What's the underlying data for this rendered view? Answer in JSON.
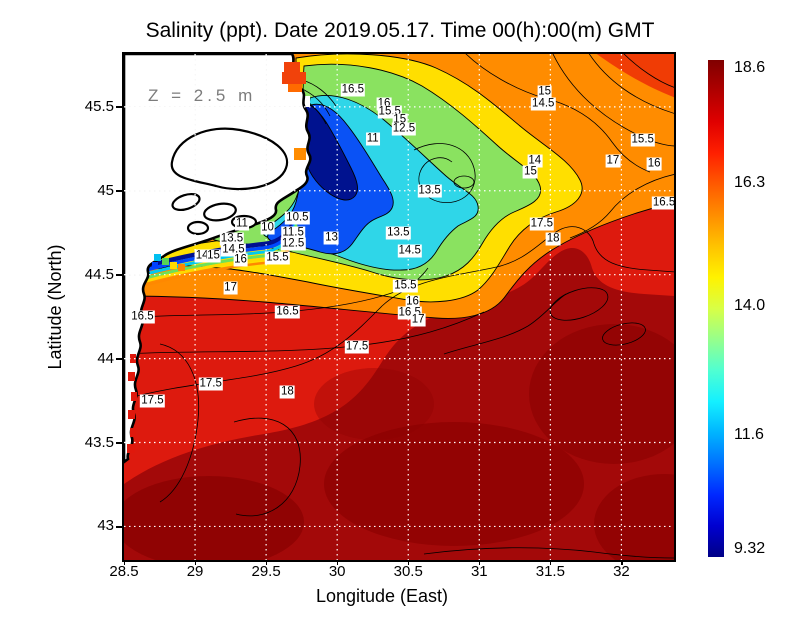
{
  "title": "Salinity (ppt). Date 2019.05.17. Time 00(h):00(m) GMT",
  "annotation": {
    "z_label": "Z = 2.5 m"
  },
  "axes": {
    "x": {
      "label": "Longitude (East)",
      "min": 28.5,
      "max": 32.37,
      "ticks": [
        "28.5",
        "29",
        "29.5",
        "30",
        "30.5",
        "31",
        "31.5",
        "32"
      ]
    },
    "y": {
      "label": "Latitude (North)",
      "min": 42.8,
      "max": 45.815,
      "ticks": [
        "45.5",
        "45",
        "44.5",
        "44",
        "43.5",
        "43"
      ]
    }
  },
  "colorbar": {
    "min": 9.32,
    "max": 18.6,
    "ticks": [
      "18.6",
      "16.3",
      "14.0",
      "11.6",
      "9.32"
    ],
    "palette_top_to_bottom": [
      "#800000",
      "#b00000",
      "#e00000",
      "#ff2000",
      "#ff5a00",
      "#ff8e00",
      "#ffc300",
      "#fff200",
      "#d8ff46",
      "#96ff8c",
      "#50ffd2",
      "#14f0ff",
      "#00b4ff",
      "#0070ff",
      "#0028ff",
      "#0000d0",
      "#000086"
    ]
  },
  "colors": {
    "land": "#ffffff",
    "coastline": "#000000",
    "contour_line": "#000000",
    "grid_sea": "#ffffff",
    "grid_land": "#b5b5b5",
    "sea_base_red": "#dd1a0e",
    "sea_dark_red": "#a30909",
    "sea_darkest_red": "#8b0202",
    "plume_orange": "#ff8c00",
    "plume_yellow": "#ffdf00",
    "plume_green": "#8ae260",
    "plume_cyan": "#2fd6e8",
    "plume_blue": "#0a52f5",
    "plume_navy": "#00128f"
  },
  "chart_data": {
    "type": "heatmap",
    "title": "Salinity (ppt). Date 2019.05.17. Time 00(h):00(m) GMT",
    "xlabel": "Longitude (East)",
    "ylabel": "Latitude (North)",
    "units": "ppt",
    "depth_annotation": "Z = 2.5 m",
    "datetime": "2019.05.17 00(h):00(m) GMT",
    "x_range": [
      28.5,
      32.37
    ],
    "y_range": [
      42.8,
      45.815
    ],
    "value_range": [
      9.32,
      18.6
    ],
    "colorbar_ticks": [
      18.6,
      16.3,
      14.0,
      11.6,
      9.32
    ],
    "grid": true,
    "contour_interval": 0.5,
    "legend_position": "right-colorbar",
    "contour_labels": [
      {
        "v": "16.5",
        "lon": 30.11,
        "lat": 45.6
      },
      {
        "v": "15",
        "lon": 31.46,
        "lat": 45.59
      },
      {
        "v": "14.5",
        "lon": 31.45,
        "lat": 45.52
      },
      {
        "v": "16",
        "lon": 30.33,
        "lat": 45.52
      },
      {
        "v": "15.5",
        "lon": 30.37,
        "lat": 45.47
      },
      {
        "v": "15",
        "lon": 30.44,
        "lat": 45.42
      },
      {
        "v": "12.5",
        "lon": 30.47,
        "lat": 45.37
      },
      {
        "v": "11",
        "lon": 30.25,
        "lat": 45.31
      },
      {
        "v": "15.5",
        "lon": 32.15,
        "lat": 45.3
      },
      {
        "v": "17",
        "lon": 31.94,
        "lat": 45.18
      },
      {
        "v": "16",
        "lon": 32.23,
        "lat": 45.16
      },
      {
        "v": "14",
        "lon": 31.39,
        "lat": 45.18
      },
      {
        "v": "15",
        "lon": 31.36,
        "lat": 45.11
      },
      {
        "v": "13.5",
        "lon": 30.65,
        "lat": 45.0
      },
      {
        "v": "16.5",
        "lon": 32.3,
        "lat": 44.93
      },
      {
        "v": "13.5",
        "lon": 30.43,
        "lat": 44.75
      },
      {
        "v": "14.5",
        "lon": 30.51,
        "lat": 44.64
      },
      {
        "v": "17.5",
        "lon": 31.44,
        "lat": 44.8
      },
      {
        "v": "18",
        "lon": 31.52,
        "lat": 44.71
      },
      {
        "v": "11",
        "lon": 29.33,
        "lat": 44.8
      },
      {
        "v": "10",
        "lon": 29.51,
        "lat": 44.78
      },
      {
        "v": "10.5",
        "lon": 29.72,
        "lat": 44.84
      },
      {
        "v": "11.5",
        "lon": 29.69,
        "lat": 44.75
      },
      {
        "v": "12.5",
        "lon": 29.69,
        "lat": 44.68
      },
      {
        "v": "13",
        "lon": 29.96,
        "lat": 44.72
      },
      {
        "v": "13.5",
        "lon": 29.26,
        "lat": 44.71
      },
      {
        "v": "14.5",
        "lon": 29.27,
        "lat": 44.65
      },
      {
        "v": "16",
        "lon": 29.32,
        "lat": 44.59
      },
      {
        "v": "14",
        "lon": 29.05,
        "lat": 44.61
      },
      {
        "v": "15",
        "lon": 29.13,
        "lat": 44.61
      },
      {
        "v": "15.5",
        "lon": 29.58,
        "lat": 44.6
      },
      {
        "v": "15.5",
        "lon": 30.48,
        "lat": 44.43
      },
      {
        "v": "16",
        "lon": 30.53,
        "lat": 44.34
      },
      {
        "v": "16.5",
        "lon": 30.51,
        "lat": 44.27
      },
      {
        "v": "17",
        "lon": 30.57,
        "lat": 44.23
      },
      {
        "v": "17",
        "lon": 29.25,
        "lat": 44.42
      },
      {
        "v": "16.5",
        "lon": 29.65,
        "lat": 44.28
      },
      {
        "v": "16.5",
        "lon": 28.63,
        "lat": 44.25
      },
      {
        "v": "17.5",
        "lon": 30.14,
        "lat": 44.07
      },
      {
        "v": "17.5",
        "lon": 29.11,
        "lat": 43.85
      },
      {
        "v": "18",
        "lon": 29.65,
        "lat": 43.8
      },
      {
        "v": "17.5",
        "lon": 28.7,
        "lat": 43.75
      }
    ]
  }
}
